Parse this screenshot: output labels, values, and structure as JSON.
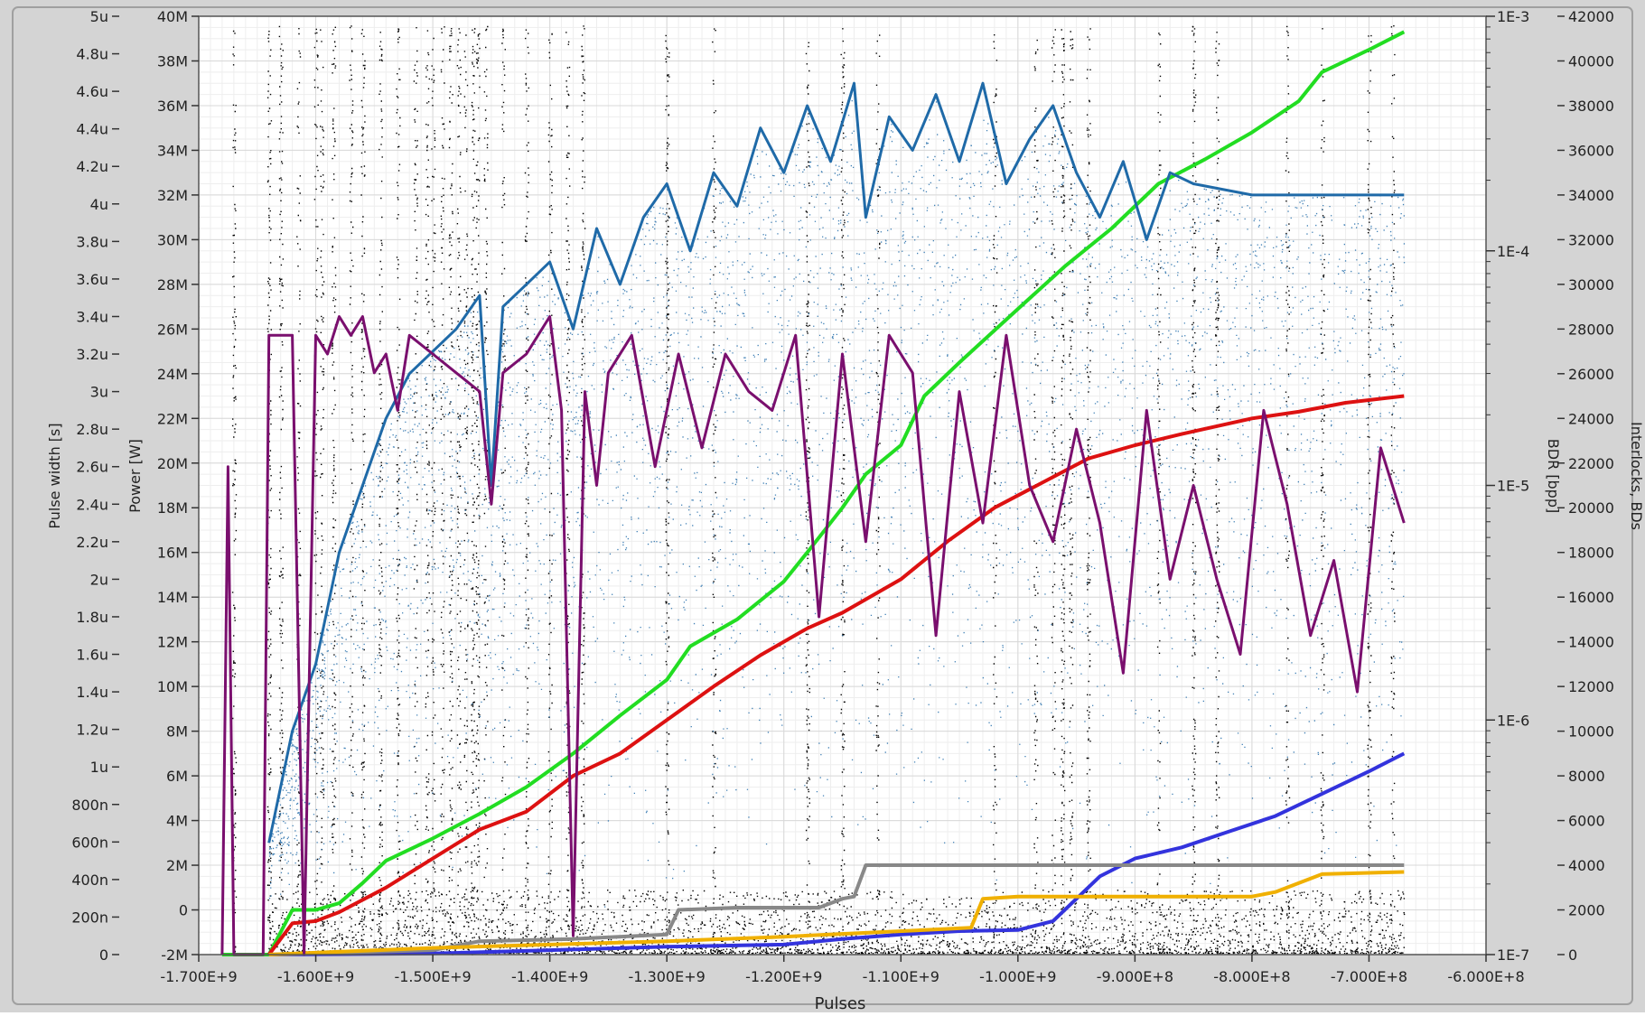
{
  "chart_data": {
    "type": "line",
    "xlabel": "Pulses",
    "x_ticks": [
      "-1.700E+9",
      "-1.600E+9",
      "-1.500E+9",
      "-1.400E+9",
      "-1.300E+9",
      "-1.200E+9",
      "-1.100E+9",
      "-1.000E+9",
      "-9.000E+8",
      "-8.000E+8",
      "-7.000E+8",
      "-6.000E+8"
    ],
    "xlim": [
      -1700000000,
      -600000000
    ],
    "axes": {
      "pulse_width": {
        "label": "Pulse width [s]",
        "lim": [
          0,
          5e-06
        ],
        "ticks": [
          "0",
          "200n",
          "400n",
          "600n",
          "800n",
          "1u",
          "1.2u",
          "1.4u",
          "1.6u",
          "1.8u",
          "2u",
          "2.2u",
          "2.4u",
          "2.6u",
          "2.8u",
          "3u",
          "3.2u",
          "3.4u",
          "3.6u",
          "3.8u",
          "4u",
          "4.2u",
          "4.4u",
          "4.6u",
          "4.8u",
          "5u"
        ]
      },
      "power": {
        "label": "Power [W]",
        "lim": [
          -2000000,
          40000000
        ],
        "ticks": [
          "-2M",
          "0",
          "2M",
          "4M",
          "6M",
          "8M",
          "10M",
          "12M",
          "14M",
          "16M",
          "18M",
          "20M",
          "22M",
          "24M",
          "26M",
          "28M",
          "30M",
          "32M",
          "34M",
          "36M",
          "38M",
          "40M"
        ]
      },
      "bdr": {
        "label": "BDR [bpp]",
        "scale": "log",
        "lim": [
          1e-07,
          0.001
        ],
        "ticks": [
          "1E-7",
          "1E-6",
          "1E-5",
          "1E-4",
          "1E-3"
        ]
      },
      "interlocks": {
        "label": "Interlocks, BDs",
        "lim": [
          0,
          42000
        ],
        "ticks": [
          "0",
          "2000",
          "4000",
          "6000",
          "8000",
          "10000",
          "12000",
          "14000",
          "16000",
          "18000",
          "20000",
          "22000",
          "24000",
          "26000",
          "28000",
          "30000",
          "32000",
          "34000",
          "36000",
          "38000",
          "40000",
          "42000"
        ]
      }
    },
    "grid": true,
    "series": [
      {
        "color": "#22dd22",
        "axis": "interlocks",
        "x": [
          -1680000000,
          -1640000000,
          -1620000000,
          -1600000000,
          -1580000000,
          -1560000000,
          -1540000000,
          -1500000000,
          -1460000000,
          -1420000000,
          -1380000000,
          -1340000000,
          -1300000000,
          -1280000000,
          -1240000000,
          -1200000000,
          -1180000000,
          -1150000000,
          -1130000000,
          -1100000000,
          -1080000000,
          -1050000000,
          -1000000000,
          -960000000,
          -920000000,
          -880000000,
          -840000000,
          -800000000,
          -760000000,
          -740000000,
          -700000000,
          -670000000
        ],
        "y": [
          0,
          0,
          2000,
          2000,
          2300,
          3200,
          4200,
          5200,
          6300,
          7500,
          9000,
          10700,
          12300,
          13800,
          15000,
          16700,
          18000,
          20000,
          21500,
          22800,
          25000,
          26500,
          28900,
          30800,
          32500,
          34500,
          35600,
          36800,
          38200,
          39500,
          40500,
          41300
        ]
      },
      {
        "color": "#dd1111",
        "axis": "interlocks",
        "x": [
          -1640000000,
          -1620000000,
          -1600000000,
          -1580000000,
          -1540000000,
          -1500000000,
          -1460000000,
          -1420000000,
          -1380000000,
          -1340000000,
          -1300000000,
          -1260000000,
          -1220000000,
          -1180000000,
          -1150000000,
          -1100000000,
          -1060000000,
          -1020000000,
          -980000000,
          -940000000,
          -900000000,
          -860000000,
          -800000000,
          -760000000,
          -720000000,
          -670000000
        ],
        "y": [
          0,
          1400,
          1500,
          1900,
          3000,
          4300,
          5600,
          6400,
          8000,
          9000,
          10500,
          12000,
          13400,
          14600,
          15300,
          16800,
          18500,
          20000,
          21100,
          22200,
          22800,
          23300,
          24000,
          24300,
          24700,
          25000
        ]
      },
      {
        "color": "#3333dd",
        "axis": "interlocks",
        "x": [
          -1640000000,
          -1500000000,
          -1400000000,
          -1300000000,
          -1200000000,
          -1150000000,
          -1100000000,
          -1050000000,
          -1000000000,
          -970000000,
          -950000000,
          -930000000,
          -900000000,
          -860000000,
          -820000000,
          -780000000,
          -740000000,
          -700000000,
          -670000000
        ],
        "y": [
          0,
          50,
          200,
          350,
          450,
          700,
          900,
          1050,
          1100,
          1500,
          2500,
          3500,
          4300,
          4800,
          5500,
          6200,
          7200,
          8200,
          9000
        ]
      },
      {
        "color": "#888888",
        "axis": "interlocks",
        "x": [
          -1640000000,
          -1500000000,
          -1460000000,
          -1380000000,
          -1300000000,
          -1290000000,
          -1240000000,
          -1170000000,
          -1150000000,
          -1140000000,
          -1130000000,
          -900000000,
          -670000000
        ],
        "y": [
          0,
          200,
          600,
          700,
          900,
          2000,
          2100,
          2100,
          2500,
          2600,
          4000,
          4000,
          4000
        ]
      },
      {
        "color": "#f0b000",
        "axis": "interlocks",
        "x": [
          -1640000000,
          -1500000000,
          -1300000000,
          -1200000000,
          -1040000000,
          -1030000000,
          -1000000000,
          -900000000,
          -800000000,
          -780000000,
          -740000000,
          -670000000
        ],
        "y": [
          0,
          300,
          600,
          800,
          1200,
          2500,
          2600,
          2600,
          2600,
          2800,
          3600,
          3700
        ]
      },
      {
        "color": "#1f6aa8",
        "axis": "power",
        "x": [
          -1640000000,
          -1620000000,
          -1600000000,
          -1580000000,
          -1560000000,
          -1540000000,
          -1520000000,
          -1500000000,
          -1480000000,
          -1460000000,
          -1450000000,
          -1440000000,
          -1420000000,
          -1400000000,
          -1380000000,
          -1360000000,
          -1340000000,
          -1320000000,
          -1300000000,
          -1280000000,
          -1260000000,
          -1240000000,
          -1220000000,
          -1200000000,
          -1180000000,
          -1160000000,
          -1140000000,
          -1130000000,
          -1110000000,
          -1090000000,
          -1070000000,
          -1050000000,
          -1030000000,
          -1010000000,
          -990000000,
          -970000000,
          -950000000,
          -930000000,
          -910000000,
          -890000000,
          -870000000,
          -850000000,
          -800000000,
          -750000000,
          -700000000,
          -670000000
        ],
        "y": [
          3000,
          8000,
          11000,
          16000,
          19000,
          22000,
          24000,
          25000,
          26000,
          27500,
          19000,
          27000,
          28000,
          29000,
          26000,
          30500,
          28000,
          31000,
          32500,
          29500,
          33000,
          31500,
          35000,
          33000,
          36000,
          33500,
          37000,
          31000,
          35500,
          34000,
          36500,
          33500,
          37000,
          32500,
          34500,
          36000,
          33000,
          31000,
          33500,
          30000,
          33000,
          32500,
          32000,
          32000,
          32000,
          32000
        ]
      },
      {
        "color": "#7a0f6e",
        "axis": "pulse_width",
        "x": [
          -1680000000,
          -1675000000,
          -1670000000,
          -1660000000,
          -1645000000,
          -1640000000,
          -1620000000,
          -1610000000,
          -1600000000,
          -1590000000,
          -1580000000,
          -1570000000,
          -1560000000,
          -1550000000,
          -1540000000,
          -1530000000,
          -1520000000,
          -1500000000,
          -1480000000,
          -1460000000,
          -1450000000,
          -1440000000,
          -1420000000,
          -1400000000,
          -1390000000,
          -1380000000,
          -1370000000,
          -1360000000,
          -1350000000,
          -1330000000,
          -1310000000,
          -1290000000,
          -1270000000,
          -1250000000,
          -1230000000,
          -1210000000,
          -1190000000,
          -1170000000,
          -1150000000,
          -1130000000,
          -1110000000,
          -1090000000,
          -1070000000,
          -1050000000,
          -1030000000,
          -1010000000,
          -990000000,
          -970000000,
          -950000000,
          -930000000,
          -910000000,
          -890000000,
          -870000000,
          -850000000,
          -830000000,
          -810000000,
          -790000000,
          -770000000,
          -750000000,
          -730000000,
          -710000000,
          -690000000,
          -670000000
        ],
        "y": [
          0,
          2.6e-06,
          0,
          0,
          0,
          3.3e-06,
          3.3e-06,
          0,
          3.3e-06,
          3.2e-06,
          3.4e-06,
          3.3e-06,
          3.4e-06,
          3.1e-06,
          3.2e-06,
          2.9e-06,
          3.3e-06,
          3.2e-06,
          3.1e-06,
          3e-06,
          2.4e-06,
          3.1e-06,
          3.2e-06,
          3.4e-06,
          2.9e-06,
          1e-07,
          3e-06,
          2.5e-06,
          3.1e-06,
          3.3e-06,
          2.6e-06,
          3.2e-06,
          2.7e-06,
          3.2e-06,
          3e-06,
          2.9e-06,
          3.3e-06,
          1.8e-06,
          3.2e-06,
          2.2e-06,
          3.3e-06,
          3.1e-06,
          1.7e-06,
          3e-06,
          2.3e-06,
          3.3e-06,
          2.5e-06,
          2.2e-06,
          2.8e-06,
          2.3e-06,
          1.5e-06,
          2.9e-06,
          2e-06,
          2.5e-06,
          2e-06,
          1.6e-06,
          2.9e-06,
          2.4e-06,
          1.7e-06,
          2.1e-06,
          1.4e-06,
          2.7e-06,
          2.3e-06
        ]
      }
    ]
  },
  "colors": {
    "frame_bg": "#d4d4d4",
    "plot_bg": "#ffffff",
    "grid_major": "#d8d8d8",
    "grid_minor": "#eeeeee",
    "scatter_black": "#000000",
    "scatter_blue": "#1f6aa8"
  }
}
